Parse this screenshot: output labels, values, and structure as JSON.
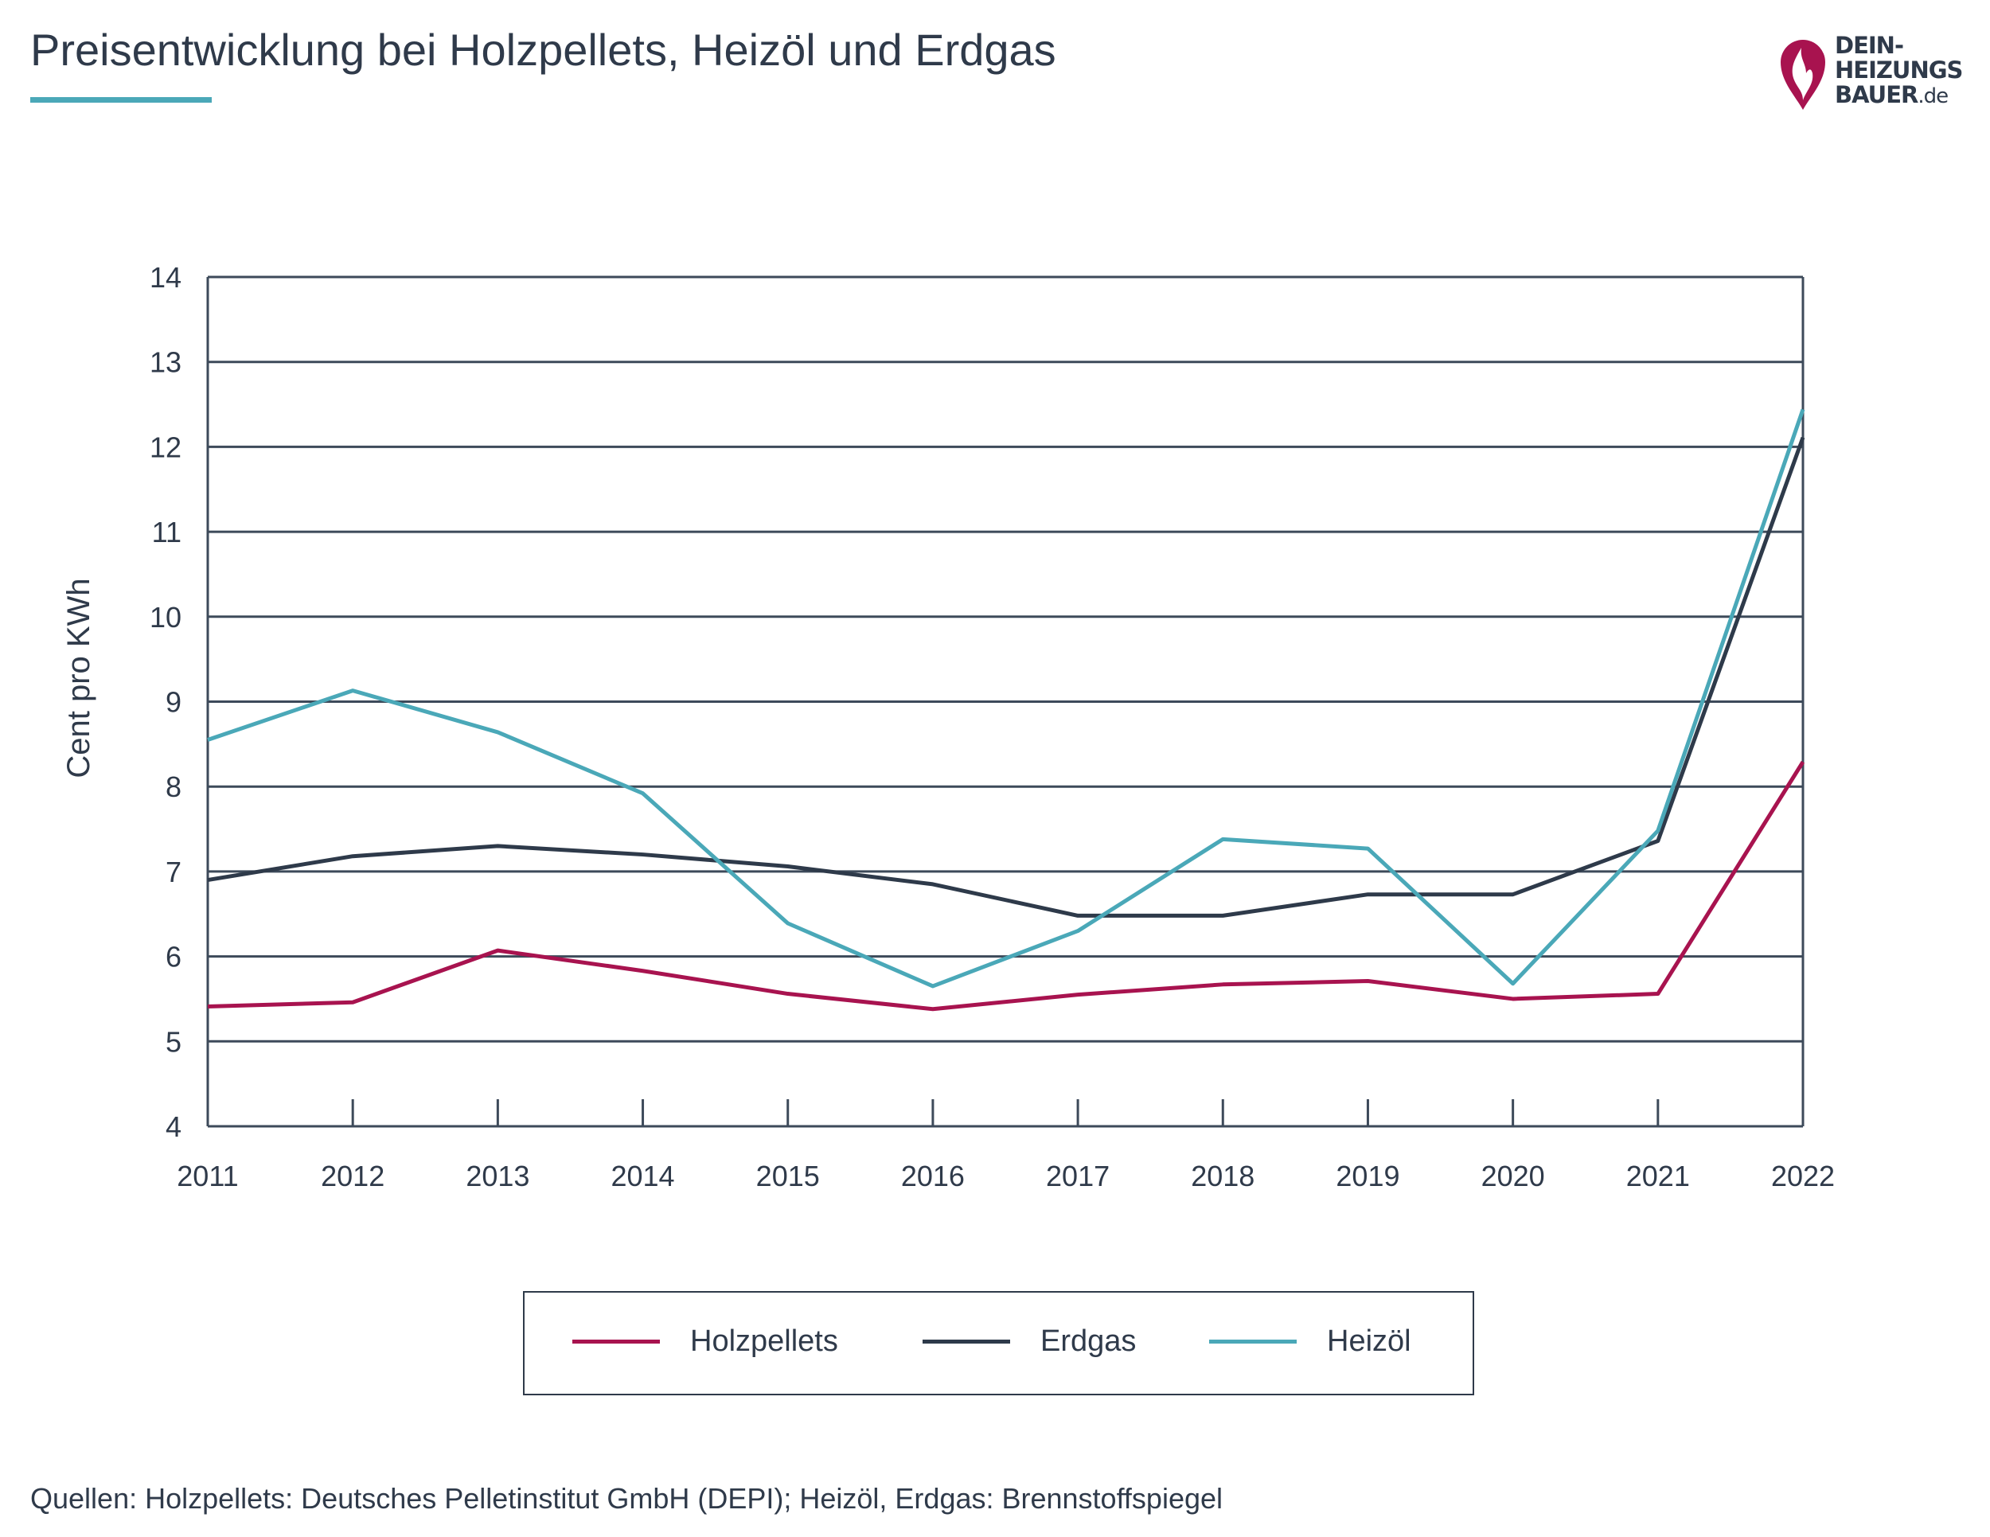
{
  "title": "Preisentwicklung bei Holzpellets, Heizöl und Erdgas",
  "logo": {
    "line1": "DEIN-",
    "line2": "HEIZUNGS",
    "line3": "BAUER",
    "tld": ".de",
    "icon": "flame-pin-icon",
    "color": "#a8134f"
  },
  "source": "Quellen: Holzpellets: Deutsches Pelletinstitut GmbH (DEPI); Heizöl, Erdgas: Brennstoffspiegel",
  "chart_data": {
    "type": "line",
    "title": "Preisentwicklung bei Holzpellets, Heizöl und Erdgas",
    "xlabel": "",
    "ylabel": "Cent pro KWh",
    "x": [
      "2011",
      "2012",
      "2013",
      "2014",
      "2015",
      "2016",
      "2017",
      "2018",
      "2019",
      "2020",
      "2021",
      "2022"
    ],
    "ylim": [
      4,
      14
    ],
    "yticks": [
      "4",
      "5",
      "6",
      "7",
      "8",
      "9",
      "10",
      "11",
      "12",
      "13",
      "14"
    ],
    "grid": true,
    "legend_position": "bottom",
    "series": [
      {
        "name": "Holzpellets",
        "color": "#a8134f",
        "values": [
          5.41,
          5.46,
          6.07,
          5.83,
          5.56,
          5.38,
          5.55,
          5.67,
          5.71,
          5.5,
          5.56,
          8.29
        ]
      },
      {
        "name": "Erdgas",
        "color": "#2e3a4a",
        "values": [
          6.9,
          7.18,
          7.3,
          7.2,
          7.06,
          6.85,
          6.48,
          6.48,
          6.73,
          6.73,
          7.36,
          12.11
        ]
      },
      {
        "name": "Heizöl",
        "color": "#4aa8b8",
        "values": [
          8.55,
          9.13,
          8.64,
          7.92,
          6.39,
          5.65,
          6.3,
          7.38,
          7.27,
          5.68,
          7.48,
          12.44
        ]
      }
    ]
  }
}
